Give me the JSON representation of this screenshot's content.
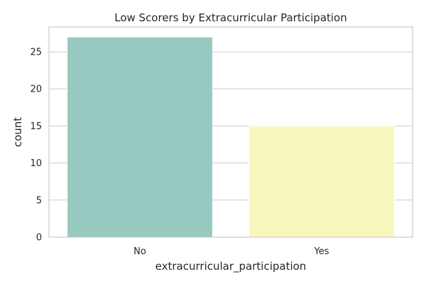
{
  "chart_data": {
    "type": "bar",
    "title": "Low Scorers by Extracurricular Participation",
    "xlabel": "extracurricular_participation",
    "ylabel": "count",
    "categories": [
      "No",
      "Yes"
    ],
    "values": [
      27,
      15
    ],
    "ylim": [
      0,
      28.35
    ],
    "yticks": [
      0,
      5,
      10,
      15,
      20,
      25
    ],
    "grid": true,
    "colors": [
      "#96c9bf",
      "#f8f8bc"
    ]
  }
}
